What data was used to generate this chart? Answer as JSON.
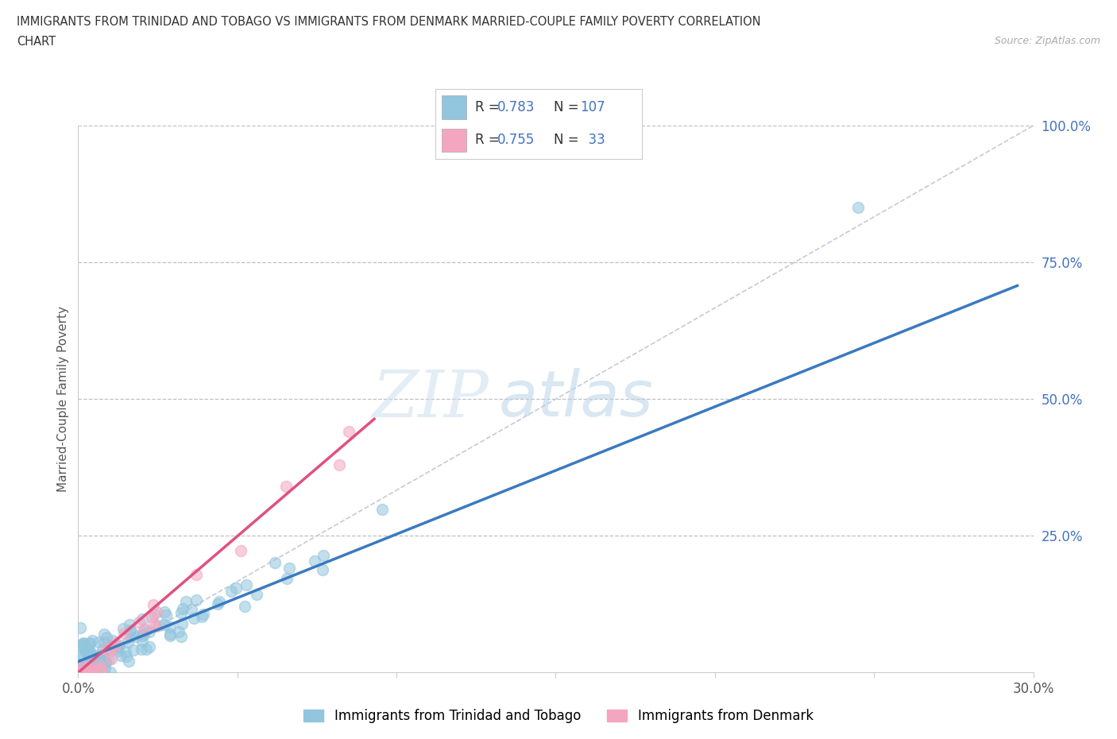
{
  "title_line1": "IMMIGRANTS FROM TRINIDAD AND TOBAGO VS IMMIGRANTS FROM DENMARK MARRIED-COUPLE FAMILY POVERTY CORRELATION",
  "title_line2": "CHART",
  "source": "Source: ZipAtlas.com",
  "ylabel": "Married-Couple Family Poverty",
  "xlim": [
    0.0,
    0.3
  ],
  "ylim": [
    0.0,
    1.0
  ],
  "blue_color": "#92c5de",
  "pink_color": "#f4a6c0",
  "blue_line_color": "#3a7abf",
  "pink_line_color": "#e05080",
  "blue_text_color": "#4472c4",
  "R_blue": 0.783,
  "N_blue": 107,
  "R_pink": 0.755,
  "N_pink": 33,
  "watermark_ZIP": "ZIP",
  "watermark_atlas": "atlas",
  "legend_label_blue": "Immigrants from Trinidad and Tobago",
  "legend_label_pink": "Immigrants from Denmark",
  "blue_slope": 2.33,
  "blue_intercept": 0.02,
  "pink_slope": 5.2,
  "pink_intercept": -0.02,
  "seed_blue": 42,
  "seed_pink": 99,
  "n_blue": 107,
  "n_pink": 33
}
